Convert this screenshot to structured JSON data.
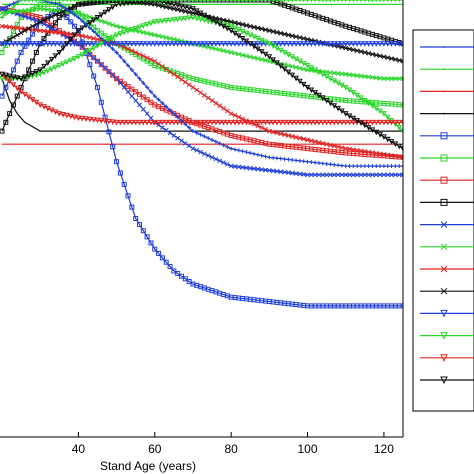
{
  "chart_data": {
    "type": "line",
    "xlabel": "Stand Age (years)",
    "ylabel": "",
    "xlim": [
      20,
      125
    ],
    "ylim": [
      0,
      1
    ],
    "x_ticks": [
      40,
      60,
      80,
      100,
      120
    ],
    "legend": {
      "placement": "right",
      "entries": 16
    },
    "colors": {
      "blue": "#1f3fd8",
      "green": "#2bd62b",
      "red": "#e02424",
      "black": "#111111"
    },
    "series": [
      {
        "color": "blue",
        "marker": "dot",
        "x": [
          20,
          25,
          30,
          35,
          40,
          50,
          60,
          70,
          80,
          90,
          100,
          110,
          120,
          125
        ],
        "y": [
          0.9,
          0.9,
          0.9,
          0.9,
          0.9,
          0.9,
          0.9,
          0.9,
          0.9,
          0.9,
          0.9,
          0.9,
          0.9,
          0.9
        ]
      },
      {
        "color": "green",
        "marker": "dot",
        "x": [
          20,
          25,
          30,
          35,
          40,
          50,
          60,
          70,
          80,
          90,
          100,
          110,
          120,
          125
        ],
        "y": [
          0.99,
          0.99,
          0.99,
          0.99,
          0.99,
          0.99,
          0.99,
          0.99,
          0.99,
          0.99,
          0.99,
          0.99,
          0.99,
          0.99
        ]
      },
      {
        "color": "red",
        "marker": "dot",
        "x": [
          20,
          25,
          30,
          35,
          40,
          50,
          60,
          70,
          80,
          90,
          100,
          110,
          120,
          125
        ],
        "y": [
          0.67,
          0.67,
          0.67,
          0.67,
          0.67,
          0.67,
          0.67,
          0.67,
          0.67,
          0.67,
          0.67,
          0.67,
          0.67,
          0.67
        ]
      },
      {
        "color": "black",
        "marker": "dot",
        "x": [
          20,
          22,
          24,
          26,
          28,
          30,
          35,
          40,
          50,
          60,
          80,
          100,
          125
        ],
        "y": [
          0.82,
          0.77,
          0.74,
          0.72,
          0.71,
          0.7,
          0.7,
          0.7,
          0.7,
          0.7,
          0.7,
          0.7,
          0.7
        ]
      },
      {
        "color": "blue",
        "marker": "square",
        "x": [
          20,
          25,
          30,
          35,
          40,
          45,
          50,
          55,
          60,
          65,
          70,
          80,
          90,
          100,
          110,
          125
        ],
        "y": [
          0.78,
          0.88,
          0.95,
          0.98,
          0.93,
          0.8,
          0.63,
          0.5,
          0.43,
          0.38,
          0.35,
          0.32,
          0.31,
          0.3,
          0.3,
          0.3
        ]
      },
      {
        "color": "green",
        "marker": "square",
        "x": [
          20,
          25,
          30,
          35,
          40,
          45,
          50,
          60,
          70,
          80,
          90,
          100,
          110,
          125
        ],
        "y": [
          0.88,
          0.96,
          0.99,
          0.99,
          0.97,
          0.93,
          0.9,
          0.85,
          0.82,
          0.8,
          0.79,
          0.78,
          0.77,
          0.76
        ]
      },
      {
        "color": "red",
        "marker": "square",
        "x": [
          20,
          30,
          40,
          50,
          60,
          70,
          80,
          90,
          100,
          110,
          125
        ],
        "y": [
          0.98,
          0.96,
          0.9,
          0.82,
          0.76,
          0.72,
          0.69,
          0.67,
          0.66,
          0.65,
          0.64
        ]
      },
      {
        "color": "black",
        "marker": "square",
        "x": [
          20,
          25,
          30,
          35,
          40,
          50,
          60,
          70,
          80,
          90,
          100,
          110,
          125
        ],
        "y": [
          0.7,
          0.8,
          0.9,
          0.96,
          0.99,
          1.0,
          1.0,
          1.0,
          1.0,
          1.0,
          0.97,
          0.94,
          0.9
        ]
      },
      {
        "color": "blue",
        "marker": "x",
        "x": [
          20,
          30,
          40,
          50,
          60,
          70,
          80,
          90,
          100,
          110,
          125
        ],
        "y": [
          0.98,
          0.95,
          0.9,
          0.82,
          0.72,
          0.66,
          0.62,
          0.61,
          0.6,
          0.6,
          0.6
        ]
      },
      {
        "color": "green",
        "marker": "x",
        "x": [
          20,
          30,
          40,
          50,
          60,
          70,
          80,
          90,
          100,
          110,
          120,
          125
        ],
        "y": [
          0.97,
          0.98,
          0.97,
          0.94,
          0.92,
          0.9,
          0.88,
          0.86,
          0.84,
          0.83,
          0.82,
          0.82
        ]
      },
      {
        "color": "red",
        "marker": "x",
        "x": [
          20,
          30,
          40,
          50,
          60,
          70,
          80,
          90,
          100,
          110,
          125
        ],
        "y": [
          0.94,
          0.93,
          0.92,
          0.9,
          0.86,
          0.8,
          0.74,
          0.7,
          0.68,
          0.66,
          0.64
        ]
      },
      {
        "color": "black",
        "marker": "x",
        "x": [
          20,
          30,
          40,
          50,
          60,
          70,
          80,
          90,
          100,
          110,
          125
        ],
        "y": [
          0.9,
          0.95,
          0.99,
          1.0,
          0.99,
          0.97,
          0.95,
          0.93,
          0.91,
          0.89,
          0.86
        ]
      },
      {
        "color": "blue",
        "marker": "triangle",
        "x": [
          20,
          30,
          40,
          50,
          60,
          70,
          80,
          90,
          100,
          110,
          120,
          125
        ],
        "y": [
          0.9,
          0.9,
          0.9,
          0.9,
          0.9,
          0.9,
          0.9,
          0.9,
          0.9,
          0.9,
          0.9,
          0.9
        ]
      },
      {
        "color": "green",
        "marker": "triangle",
        "x": [
          20,
          25,
          30,
          35,
          40,
          50,
          60,
          70,
          80,
          90,
          100,
          110,
          120,
          125
        ],
        "y": [
          0.82,
          0.82,
          0.83,
          0.85,
          0.87,
          0.92,
          0.95,
          0.96,
          0.94,
          0.9,
          0.85,
          0.8,
          0.74,
          0.7
        ]
      },
      {
        "color": "red",
        "marker": "triangle",
        "x": [
          20,
          25,
          30,
          35,
          40,
          50,
          60,
          70,
          80,
          90,
          100,
          125
        ],
        "y": [
          0.83,
          0.79,
          0.76,
          0.74,
          0.73,
          0.72,
          0.72,
          0.72,
          0.72,
          0.72,
          0.72,
          0.72
        ]
      },
      {
        "color": "black",
        "marker": "triangle",
        "x": [
          20,
          25,
          30,
          35,
          40,
          50,
          60,
          70,
          80,
          90,
          100,
          110,
          125
        ],
        "y": [
          0.83,
          0.82,
          0.84,
          0.88,
          0.93,
          0.99,
          1.0,
          0.98,
          0.93,
          0.87,
          0.8,
          0.74,
          0.66
        ]
      },
      {
        "color": "blue",
        "marker": "plus",
        "x": [
          20,
          25,
          30,
          35,
          40,
          50,
          60,
          70,
          80,
          90,
          100,
          110,
          125
        ],
        "y": [
          0.98,
          1.0,
          1.0,
          0.99,
          0.96,
          0.88,
          0.78,
          0.7,
          0.66,
          0.64,
          0.63,
          0.62,
          0.62
        ]
      },
      {
        "color": "green",
        "marker": "plus",
        "x": [
          20,
          25,
          30,
          35,
          40,
          50,
          60,
          70,
          80,
          90,
          100,
          110,
          125
        ],
        "y": [
          0.96,
          1.0,
          1.0,
          1.0,
          1.0,
          1.0,
          1.0,
          1.0,
          1.0,
          1.0,
          1.0,
          1.0,
          1.0
        ]
      }
    ]
  }
}
